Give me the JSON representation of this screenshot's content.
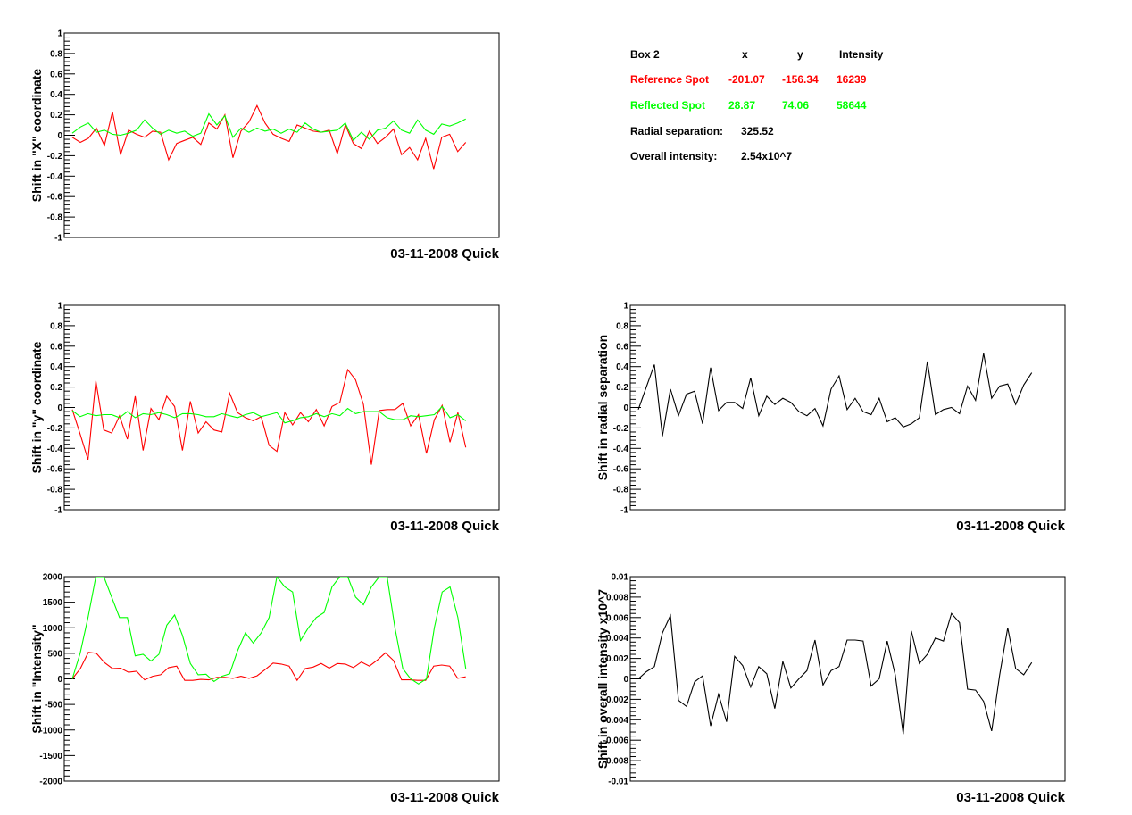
{
  "info_box": {
    "title": "Box 2",
    "headers": {
      "x": "x",
      "y": "y",
      "intensity": "Intensity"
    },
    "reference": {
      "label": "Reference Spot",
      "x": "-201.07",
      "y": "-156.34",
      "intensity": "16239",
      "color": "#ff0000"
    },
    "reflected": {
      "label": "Reflected Spot",
      "x": "28.87",
      "y": "74.06",
      "intensity": "58644",
      "color": "#00ff00"
    },
    "radial": {
      "label": "Radial separation:",
      "value": "325.52"
    },
    "overall": {
      "label": "Overall intensity:",
      "value": "2.54x10^7"
    }
  },
  "chart_data": [
    {
      "type": "line",
      "ylabel": "Shift in \"X\" coordinate",
      "footer": "03-11-2008 Quick",
      "ylim": [
        -1,
        1
      ],
      "yticks": [
        "1",
        "0.8",
        "0.6",
        "0.4",
        "0.2",
        "0",
        "-0.2",
        "-0.4",
        "-0.6",
        "-0.8",
        "-1"
      ],
      "grid": false,
      "series": [
        {
          "color": "#ff0000",
          "values": [
            -0.02,
            -0.07,
            -0.03,
            0.07,
            -0.1,
            0.23,
            -0.19,
            0.05,
            0.01,
            -0.02,
            0.04,
            0.03,
            -0.24,
            -0.08,
            -0.05,
            -0.02,
            -0.09,
            0.12,
            0.06,
            0.2,
            -0.22,
            0.04,
            0.13,
            0.29,
            0.12,
            0.01,
            -0.03,
            -0.06,
            0.1,
            0.07,
            0.04,
            0.03,
            0.05,
            -0.18,
            0.1,
            -0.08,
            -0.13,
            0.04,
            -0.08,
            -0.02,
            0.06,
            -0.19,
            -0.12,
            -0.24,
            -0.03,
            -0.33,
            -0.02,
            0.01,
            -0.16,
            -0.07
          ]
        },
        {
          "color": "#00ff00",
          "values": [
            0.02,
            0.08,
            0.12,
            0.03,
            0.05,
            0.01,
            0.0,
            0.02,
            0.05,
            0.15,
            0.07,
            0.01,
            0.05,
            0.02,
            0.04,
            -0.01,
            0.02,
            0.21,
            0.1,
            0.19,
            -0.02,
            0.07,
            0.03,
            0.07,
            0.04,
            0.06,
            0.02,
            0.06,
            0.03,
            0.12,
            0.06,
            0.03,
            0.04,
            0.05,
            0.12,
            -0.05,
            0.03,
            -0.04,
            0.05,
            0.07,
            0.14,
            0.05,
            0.02,
            0.15,
            0.05,
            0.01,
            0.11,
            0.09,
            0.12,
            0.16
          ]
        }
      ]
    },
    {
      "type": "line",
      "ylabel": "Shift in \"y\" coordinate",
      "footer": "03-11-2008 Quick",
      "ylim": [
        -1,
        1
      ],
      "yticks": [
        "1",
        "0.8",
        "0.6",
        "0.4",
        "0.2",
        "0",
        "-0.2",
        "-0.4",
        "-0.6",
        "-0.8",
        "-1"
      ],
      "grid": false,
      "series": [
        {
          "color": "#ff0000",
          "values": [
            -0.02,
            -0.26,
            -0.51,
            0.26,
            -0.22,
            -0.25,
            -0.08,
            -0.31,
            0.11,
            -0.42,
            -0.01,
            -0.12,
            0.11,
            0.01,
            -0.42,
            0.06,
            -0.25,
            -0.14,
            -0.22,
            -0.24,
            0.14,
            -0.05,
            -0.1,
            -0.13,
            -0.09,
            -0.37,
            -0.43,
            -0.05,
            -0.17,
            -0.05,
            -0.14,
            -0.02,
            -0.18,
            0.01,
            0.05,
            0.37,
            0.27,
            0.03,
            -0.56,
            -0.03,
            -0.02,
            -0.02,
            0.04,
            -0.18,
            -0.07,
            -0.45,
            -0.12,
            0.02,
            -0.34,
            -0.05,
            -0.39
          ]
        },
        {
          "color": "#00ff00",
          "values": [
            -0.03,
            -0.09,
            -0.06,
            -0.08,
            -0.07,
            -0.07,
            -0.1,
            -0.04,
            -0.1,
            -0.06,
            -0.07,
            -0.05,
            -0.07,
            -0.1,
            -0.06,
            -0.06,
            -0.07,
            -0.09,
            -0.09,
            -0.06,
            -0.08,
            -0.1,
            -0.07,
            -0.05,
            -0.09,
            -0.07,
            -0.05,
            -0.15,
            -0.13,
            -0.1,
            -0.09,
            -0.06,
            -0.09,
            -0.06,
            -0.08,
            -0.01,
            -0.06,
            -0.04,
            -0.04,
            -0.04,
            -0.1,
            -0.12,
            -0.12,
            -0.08,
            -0.09,
            -0.08,
            -0.07,
            0.01,
            -0.1,
            -0.07,
            -0.13
          ]
        }
      ]
    },
    {
      "type": "line",
      "ylabel": "Shift in radial separation",
      "footer": "03-11-2008 Quick",
      "ylim": [
        -1,
        1
      ],
      "yticks": [
        "1",
        "0.8",
        "0.6",
        "0.4",
        "0.2",
        "0",
        "-0.2",
        "-0.4",
        "-0.6",
        "-0.8",
        "-1"
      ],
      "grid": false,
      "series": [
        {
          "color": "#000000",
          "values": [
            -0.02,
            0.2,
            0.42,
            -0.28,
            0.18,
            -0.08,
            0.13,
            0.16,
            -0.16,
            0.39,
            -0.03,
            0.05,
            0.05,
            -0.01,
            0.29,
            -0.08,
            0.11,
            0.03,
            0.09,
            0.05,
            -0.04,
            -0.08,
            -0.01,
            -0.18,
            0.18,
            0.31,
            -0.02,
            0.09,
            -0.04,
            -0.07,
            0.09,
            -0.14,
            -0.1,
            -0.19,
            -0.16,
            -0.1,
            0.45,
            -0.07,
            -0.02,
            0.0,
            -0.06,
            0.21,
            0.07,
            0.53,
            0.09,
            0.21,
            0.23,
            0.03,
            0.22,
            0.34
          ]
        }
      ]
    },
    {
      "type": "line",
      "ylabel": "Shift in \"Intensity\"",
      "footer": "03-11-2008 Quick",
      "ylim": [
        -2000,
        2000
      ],
      "yticks": [
        "2000",
        "1500",
        "1000",
        "500",
        "0",
        "-500",
        "-1000",
        "-1500",
        "-2000"
      ],
      "grid": false,
      "series": [
        {
          "color": "#ff0000",
          "values": [
            0,
            200,
            520,
            500,
            320,
            200,
            210,
            130,
            150,
            -20,
            50,
            80,
            220,
            250,
            -30,
            -30,
            -10,
            -20,
            30,
            30,
            10,
            50,
            10,
            60,
            180,
            310,
            290,
            250,
            -30,
            200,
            230,
            300,
            210,
            300,
            290,
            220,
            330,
            250,
            370,
            510,
            360,
            -20,
            -20,
            -30,
            -30,
            250,
            270,
            250,
            10,
            40
          ]
        },
        {
          "color": "#00ff00",
          "values": [
            0,
            500,
            1200,
            2000,
            2000,
            1600,
            1200,
            1200,
            450,
            480,
            350,
            480,
            1050,
            1250,
            850,
            300,
            80,
            90,
            -50,
            50,
            100,
            550,
            900,
            700,
            900,
            1200,
            2000,
            1800,
            1700,
            750,
            1000,
            1200,
            1300,
            1800,
            2000,
            2000,
            1600,
            1450,
            1800,
            2000,
            2000,
            1000,
            200,
            0,
            -100,
            0,
            1000,
            1700,
            1800,
            1200,
            200
          ]
        }
      ]
    },
    {
      "type": "line",
      "ylabel": "Shift in overall intensity x10^7",
      "footer": "03-11-2008 Quick",
      "ylim": [
        -0.01,
        0.01
      ],
      "yticks": [
        "0.01",
        "0.008",
        "0.006",
        "0.004",
        "0.002",
        "0",
        "-0.002",
        "-0.004",
        "-0.006",
        "-0.008",
        "-0.01"
      ],
      "grid": false,
      "series": [
        {
          "color": "#000000",
          "values": [
            0.0,
            0.0007,
            0.0012,
            0.0045,
            0.0062,
            -0.0021,
            -0.0027,
            -0.0003,
            0.0003,
            -0.0046,
            -0.0015,
            -0.0042,
            0.0022,
            0.0013,
            -0.0008,
            0.0012,
            0.0005,
            -0.0029,
            0.0017,
            -0.0009,
            0.0,
            0.0008,
            0.0038,
            -0.0006,
            0.0008,
            0.0012,
            0.0038,
            0.0038,
            0.0037,
            -0.0007,
            0.0,
            0.0037,
            0.0004,
            -0.0054,
            0.0047,
            0.0015,
            0.0024,
            0.004,
            0.0037,
            0.0064,
            0.0055,
            -0.001,
            -0.0011,
            -0.0022,
            -0.0051,
            0.0004,
            0.005,
            0.001,
            0.0004,
            0.0016
          ]
        }
      ]
    }
  ]
}
